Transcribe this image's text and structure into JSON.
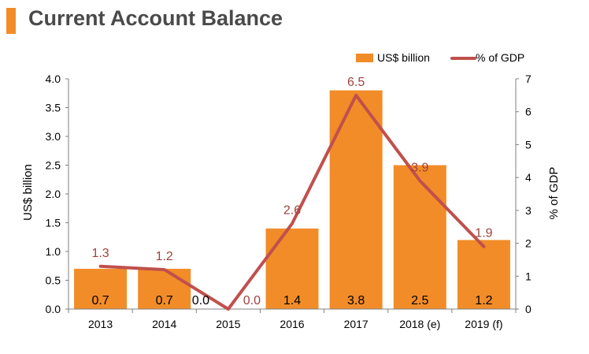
{
  "title": "Current Account Balance",
  "colors": {
    "bar": "#f28c28",
    "line": "#c0504d",
    "line_label": "#a0413e",
    "axis": "#808080",
    "text": "#000000"
  },
  "chart_data": {
    "type": "bar",
    "categories": [
      "2013",
      "2014",
      "2015",
      "2016",
      "2017",
      "2018 (e)",
      "2019 (f)"
    ],
    "series": [
      {
        "name": "US$ billion",
        "type": "bar",
        "axis": "left",
        "values": [
          0.7,
          0.7,
          0.0,
          1.4,
          3.8,
          2.5,
          1.2
        ],
        "labels": [
          "0.7",
          "0.7",
          "0.0",
          "1.4",
          "3.8",
          "2.5",
          "1.2"
        ]
      },
      {
        "name": "% of GDP",
        "type": "line",
        "axis": "right",
        "values": [
          1.3,
          1.2,
          0.0,
          2.6,
          6.5,
          3.9,
          1.9
        ],
        "labels": [
          "1.3",
          "1.2",
          "0.0",
          "2.6",
          "6.5",
          "3.9",
          "1.9"
        ]
      }
    ],
    "ylabel": "US$ billion",
    "y2label": "% of GDP",
    "ylim": [
      0,
      4.0
    ],
    "y2lim": [
      0,
      7
    ],
    "yticks": [
      "0.0",
      "0.5",
      "1.0",
      "1.5",
      "2.0",
      "2.5",
      "3.0",
      "3.5",
      "4.0"
    ],
    "y2ticks": [
      "0",
      "1",
      "2",
      "3",
      "4",
      "5",
      "6",
      "7"
    ],
    "grid": false,
    "legend_position": "top-right"
  }
}
